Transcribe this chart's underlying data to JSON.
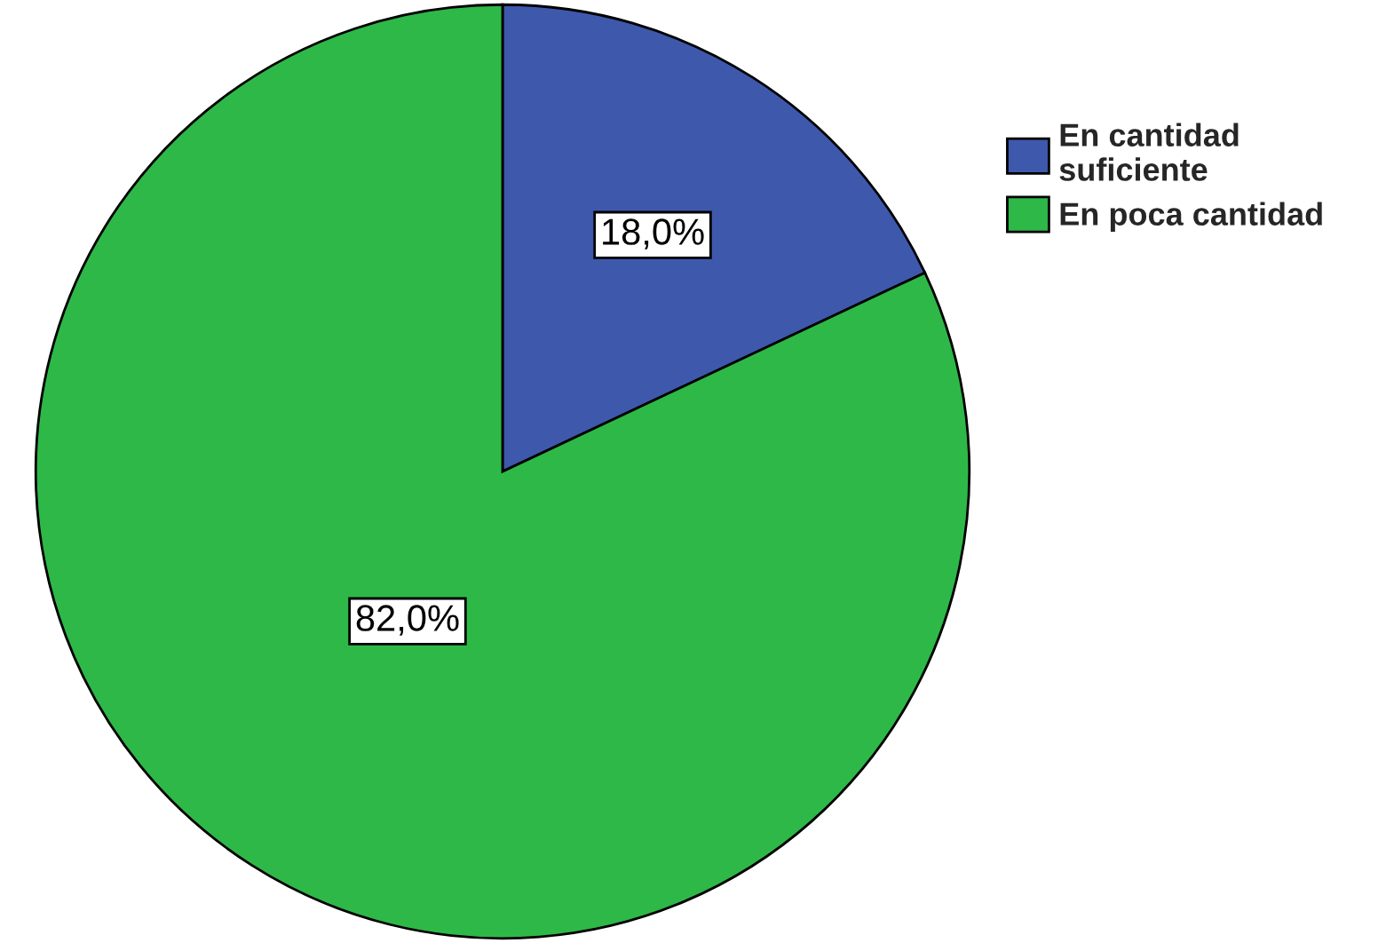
{
  "chart_data": {
    "type": "pie",
    "categories": [
      "En cantidad suficiente",
      "En poca cantidad"
    ],
    "values": [
      18.0,
      82.0
    ],
    "colors": [
      "#3e58ac",
      "#2eb848"
    ],
    "value_labels": [
      "18,0%",
      "82,0%"
    ],
    "legend": "top right"
  }
}
